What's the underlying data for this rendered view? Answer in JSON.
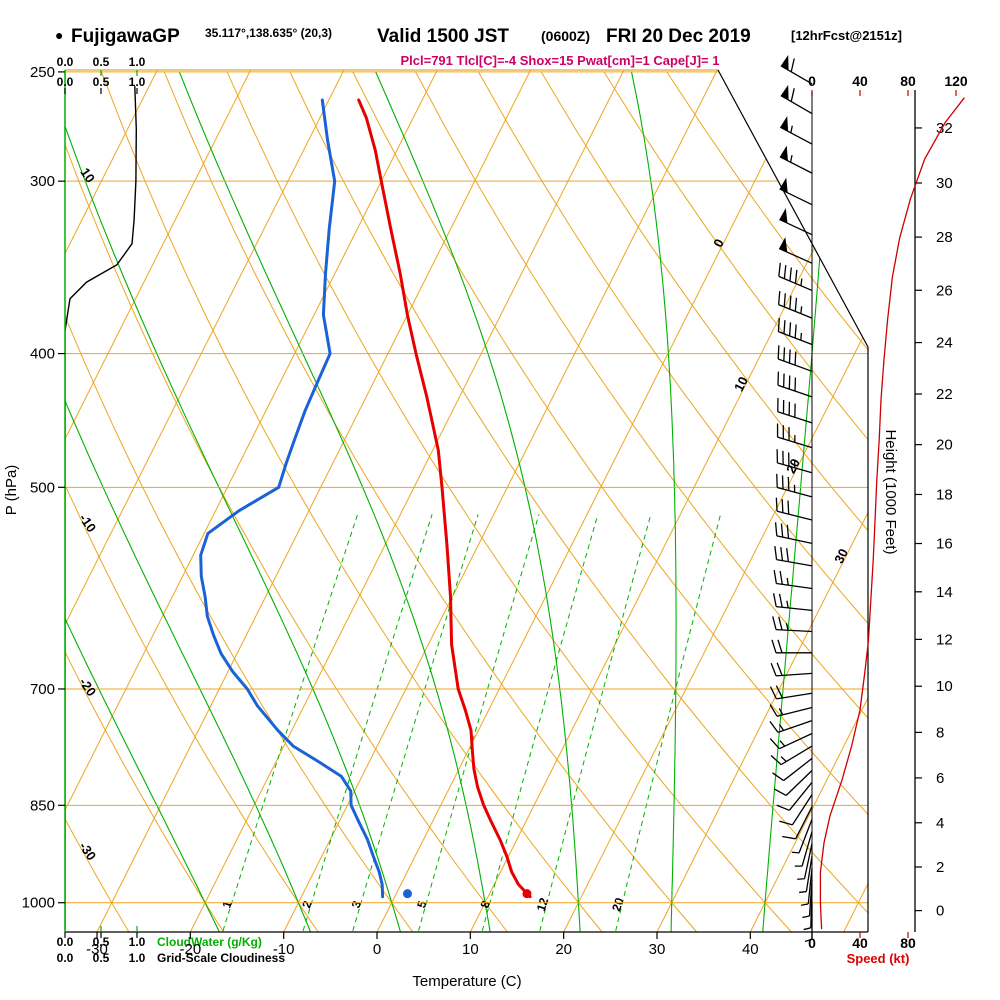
{
  "header": {
    "marker": "●",
    "station": "FujigawaGP",
    "coords": "35.117°,138.635° (20,3)",
    "valid_main": "Valid 1500 JST",
    "valid_z": "(0600Z)",
    "valid_date": "FRI 20 Dec 2019",
    "fcst_tag": "[12hrFcst@2151z]",
    "params_line": "Plcl=791 Tlcl[C]=-4 Shox=15 Pwat[cm]=1 Cape[J]= 1"
  },
  "axes": {
    "pressure_label": "P (hPa)",
    "pressure_ticks": [
      250,
      300,
      400,
      500,
      700,
      850,
      1000
    ],
    "temp_label": "Temperature (C)",
    "temp_ticks": [
      -30,
      -20,
      -10,
      0,
      10,
      20,
      30,
      40
    ],
    "height_label": "Height (1000 Feet)",
    "height_ticks": [
      0,
      2,
      4,
      6,
      8,
      10,
      12,
      14,
      16,
      18,
      20,
      22,
      24,
      26,
      28,
      30,
      32
    ],
    "speed_label": "Speed (kt)",
    "speed_ticks_top": [
      0,
      40,
      80,
      120
    ],
    "speed_ticks_bottom": [
      0,
      40,
      80
    ],
    "cloud_scale": [
      "0.0",
      "0.5",
      "1.0"
    ],
    "cloudwater_label": "CloudWater (g/Kg)",
    "cloudiness_label": "Grid-Scale Cloudiness"
  },
  "colors": {
    "grid_orange": "#eda620",
    "green": "#00b100",
    "temp_red": "#e60000",
    "dewpoint_blue": "#1a63d6",
    "speed_red": "#cc0000",
    "magenta": "#cc0066",
    "black": "#000000"
  },
  "chart_data": {
    "type": "line",
    "diagram": "skew-t log-p thermodynamic sounding",
    "pressure_axis_range_hpa": [
      250,
      1050
    ],
    "surface_temp_axis_range_c": [
      -33.5,
      52
    ],
    "isotherms": {
      "from": -120,
      "to": 50,
      "step": 10
    },
    "dry_adiabats": {
      "from": -60,
      "to": 110,
      "step": 10
    },
    "moist_adiabats_c": [
      -20,
      -10,
      0,
      10,
      20,
      30,
      40
    ],
    "mixing_ratio_g_kg": [
      1,
      2,
      3,
      5,
      8,
      12,
      20
    ],
    "isotherm_labels": [
      0,
      10,
      20,
      30
    ],
    "dry_adiabat_labels": [
      -10,
      -20,
      -30
    ],
    "moist_adiabat_label": "10",
    "temperature_profile": {
      "pressure_hpa": [
        990,
        970,
        950,
        925,
        900,
        875,
        850,
        825,
        800,
        775,
        750,
        725,
        700,
        650,
        600,
        550,
        500,
        470,
        450,
        430,
        400,
        375,
        350,
        325,
        300,
        285,
        270,
        262
      ],
      "temp_c": [
        14.5,
        12.6,
        11.2,
        9.8,
        8.2,
        6.4,
        4.6,
        3.0,
        1.6,
        0.4,
        -0.8,
        -2.5,
        -4.4,
        -7.5,
        -10.2,
        -13.4,
        -17.0,
        -19.4,
        -21.4,
        -23.5,
        -27.0,
        -30.0,
        -33.0,
        -36.4,
        -40.0,
        -42.3,
        -45.0,
        -46.8
      ]
    },
    "dewpoint_profile": {
      "pressure_hpa": [
        990,
        970,
        950,
        925,
        900,
        875,
        850,
        830,
        810,
        790,
        770,
        750,
        720,
        700,
        680,
        660,
        640,
        620,
        600,
        580,
        560,
        540,
        520,
        500,
        480,
        460,
        440,
        420,
        400,
        375,
        350,
        325,
        300,
        280,
        262
      ],
      "temp_c": [
        -1.3,
        -2.0,
        -3.0,
        -4.5,
        -6.0,
        -7.8,
        -9.6,
        -10.4,
        -12.2,
        -15.5,
        -19.0,
        -21.5,
        -25.0,
        -27.0,
        -29.5,
        -31.7,
        -33.5,
        -35.2,
        -36.5,
        -38.0,
        -39.2,
        -39.6,
        -37.5,
        -34.5,
        -35.0,
        -35.4,
        -35.8,
        -36.0,
        -36.2,
        -39.0,
        -41.0,
        -43.0,
        -45.0,
        -48.0,
        -50.7
      ]
    },
    "surface_temperature_dot": {
      "pressure_hpa": 985,
      "temp_c": 14.0
    },
    "surface_dewpoint_dot": {
      "pressure_hpa": 985,
      "temp_c": 1.2
    },
    "cloudiness_profile": {
      "pressure_hpa": [
        256,
        275,
        300,
        320,
        333,
        345,
        355,
        365,
        385,
        420,
        1045
      ],
      "fraction": [
        0.97,
        0.99,
        0.985,
        0.96,
        0.93,
        0.72,
        0.3,
        0.07,
        0.0,
        0.0,
        0.0
      ]
    },
    "wind_speed_profile": {
      "pressure_hpa": [
        1045,
        1000,
        950,
        905,
        865,
        815,
        770,
        725,
        681,
        646,
        604,
        565,
        529,
        494,
        462,
        432,
        404,
        378,
        352,
        330,
        309,
        289,
        272,
        261
      ],
      "speed_kt": [
        8,
        7,
        7,
        10,
        15,
        25,
        33,
        40,
        44,
        47,
        49,
        51,
        52.5,
        54,
        56,
        57.5,
        60,
        63,
        67,
        73,
        82,
        94,
        111,
        127
      ]
    },
    "wind_barbs_format": [
      "pressure_hpa",
      "dir_deg",
      "speed_kt"
    ],
    "wind_barbs": [
      [
        255,
        300,
        60
      ],
      [
        268,
        300,
        58
      ],
      [
        282,
        298,
        55
      ],
      [
        296,
        297,
        55
      ],
      [
        312,
        296,
        52
      ],
      [
        328,
        295,
        50
      ],
      [
        344,
        294,
        48
      ],
      [
        360,
        293,
        46
      ],
      [
        377,
        292,
        45
      ],
      [
        394,
        291,
        43
      ],
      [
        412,
        290,
        42
      ],
      [
        430,
        289,
        40
      ],
      [
        449,
        288,
        38
      ],
      [
        468,
        287,
        36
      ],
      [
        488,
        286,
        35
      ],
      [
        508,
        285,
        33
      ],
      [
        528,
        284,
        31
      ],
      [
        549,
        282,
        30
      ],
      [
        570,
        280,
        28
      ],
      [
        592,
        278,
        26
      ],
      [
        614,
        276,
        25
      ],
      [
        636,
        273,
        23
      ],
      [
        659,
        270,
        22
      ],
      [
        682,
        266,
        20
      ],
      [
        705,
        261,
        18
      ],
      [
        722,
        256,
        16
      ],
      [
        738,
        251,
        15
      ],
      [
        754,
        245,
        14
      ],
      [
        770,
        239,
        13
      ],
      [
        786,
        232,
        12
      ],
      [
        802,
        226,
        11
      ],
      [
        818,
        219,
        10
      ],
      [
        835,
        213,
        9
      ],
      [
        852,
        207,
        8
      ],
      [
        870,
        201,
        7
      ],
      [
        888,
        196,
        6
      ],
      [
        906,
        192,
        6
      ],
      [
        925,
        189,
        5
      ],
      [
        944,
        186,
        5
      ],
      [
        963,
        184,
        4
      ],
      [
        982,
        182,
        4
      ],
      [
        1001,
        180,
        3
      ]
    ]
  }
}
